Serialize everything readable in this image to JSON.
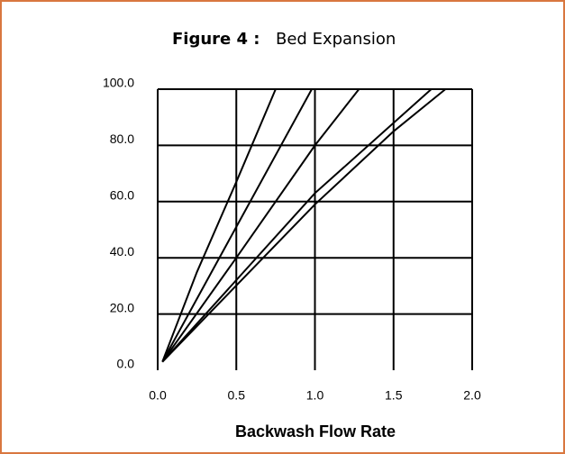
{
  "chart_data": {
    "type": "line",
    "figure_label": "Figure 4 :",
    "title": "Bed Expansion",
    "xlabel": "Backwash Flow Rate",
    "xlim": [
      0,
      2
    ],
    "ylim": [
      0,
      100
    ],
    "xticks": [
      {
        "value": 0,
        "label": "0.0"
      },
      {
        "value": 0.5,
        "label": "0.5"
      },
      {
        "value": 1,
        "label": "1.0"
      },
      {
        "value": 1.5,
        "label": "1.5"
      },
      {
        "value": 2,
        "label": "2.0"
      }
    ],
    "yticks": [
      {
        "value": 0,
        "label": "0.0"
      },
      {
        "value": 20,
        "label": "20.0"
      },
      {
        "value": 40,
        "label": "40.0"
      },
      {
        "value": 60,
        "label": "60.0"
      },
      {
        "value": 80,
        "label": "80.0"
      },
      {
        "value": 100,
        "label": "100.0"
      }
    ],
    "grid": true,
    "series": [
      {
        "color": "#000000",
        "x": [
          0.03,
          0.25,
          0.5,
          0.75
        ],
        "values": [
          3,
          35,
          67,
          100
        ]
      },
      {
        "color": "#000000",
        "x": [
          0.03,
          0.5,
          0.98
        ],
        "values": [
          3,
          51,
          100
        ]
      },
      {
        "color": "#000000",
        "x": [
          0.03,
          0.5,
          1.0,
          1.28
        ],
        "values": [
          3,
          40,
          80,
          100
        ]
      },
      {
        "color": "#000000",
        "x": [
          0.03,
          1.0,
          1.74
        ],
        "values": [
          3,
          63,
          100
        ]
      },
      {
        "color": "#000000",
        "x": [
          0.03,
          1.0,
          1.5,
          1.83
        ],
        "values": [
          3,
          59,
          85,
          100
        ]
      }
    ]
  }
}
